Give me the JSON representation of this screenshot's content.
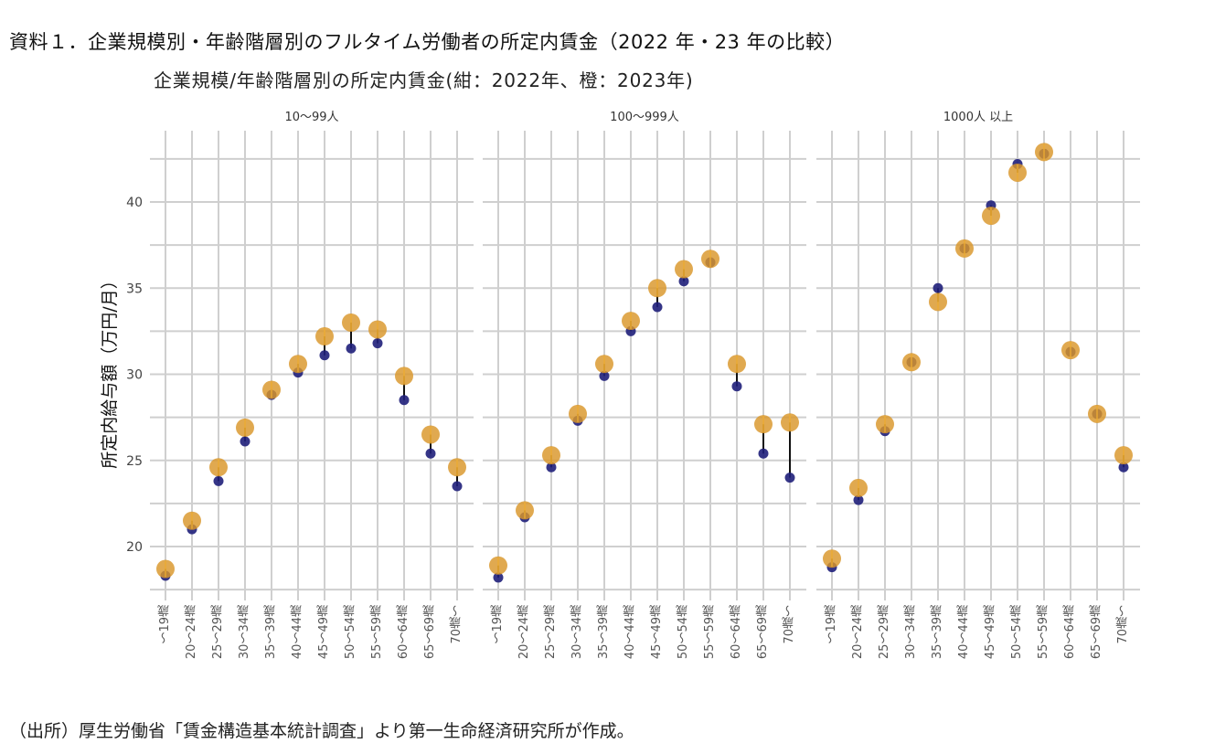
{
  "title": "資料１．企業規模別・年齢階層別のフルタイム労働者の所定内賃金（2022 年・23 年の比較）",
  "footer": "（出所）厚生労働省「賃金構造基本統計調査」より第一生命経済研究所が作成。",
  "chart_data": {
    "type": "scatter",
    "subtype": "dumbbell-facets",
    "title": "企業規模/年齢階層別の所定内賃金(紺：2022年、橙：2023年)",
    "ylabel": "所定内給与額（万円/月）",
    "xlabel": "",
    "ylim": [
      17.5,
      43.5
    ],
    "yticks": [
      20,
      25,
      30,
      35,
      40
    ],
    "grid": true,
    "colors": {
      "2022": "#1f1f7a",
      "2023": "#d9962a",
      "segment": "#111111",
      "grid": "#cfcfcf"
    },
    "categories": [
      "〜19歳",
      "20〜24歳",
      "25〜29歳",
      "30〜34歳",
      "35〜39歳",
      "40〜44歳",
      "45〜49歳",
      "50〜54歳",
      "55〜59歳",
      "60〜64歳",
      "65〜69歳",
      "70歳〜"
    ],
    "facets": [
      {
        "label": "10〜99人",
        "series": [
          {
            "name": "2022",
            "values": [
              18.3,
              21.0,
              23.8,
              26.1,
              28.8,
              30.1,
              31.1,
              31.5,
              31.8,
              28.5,
              25.4,
              23.5
            ]
          },
          {
            "name": "2023",
            "values": [
              18.7,
              21.5,
              24.6,
              26.9,
              29.1,
              30.6,
              32.2,
              33.0,
              32.6,
              29.9,
              26.5,
              24.6
            ]
          }
        ]
      },
      {
        "label": "100〜999人",
        "series": [
          {
            "name": "2022",
            "values": [
              18.2,
              21.7,
              24.6,
              27.3,
              29.9,
              32.5,
              33.9,
              35.4,
              36.5,
              29.3,
              25.4,
              24.0
            ]
          },
          {
            "name": "2023",
            "values": [
              18.9,
              22.1,
              25.3,
              27.7,
              30.6,
              33.1,
              35.0,
              36.1,
              36.7,
              30.6,
              27.1,
              27.2
            ]
          }
        ]
      },
      {
        "label": "1000人 以上",
        "series": [
          {
            "name": "2022",
            "values": [
              18.8,
              22.7,
              26.7,
              30.7,
              35.0,
              37.3,
              39.8,
              42.2,
              42.8,
              31.3,
              27.7,
              24.6
            ]
          },
          {
            "name": "2023",
            "values": [
              19.3,
              23.4,
              27.1,
              30.7,
              34.2,
              37.3,
              39.2,
              41.7,
              42.9,
              31.4,
              27.7,
              25.3
            ]
          }
        ]
      }
    ]
  }
}
